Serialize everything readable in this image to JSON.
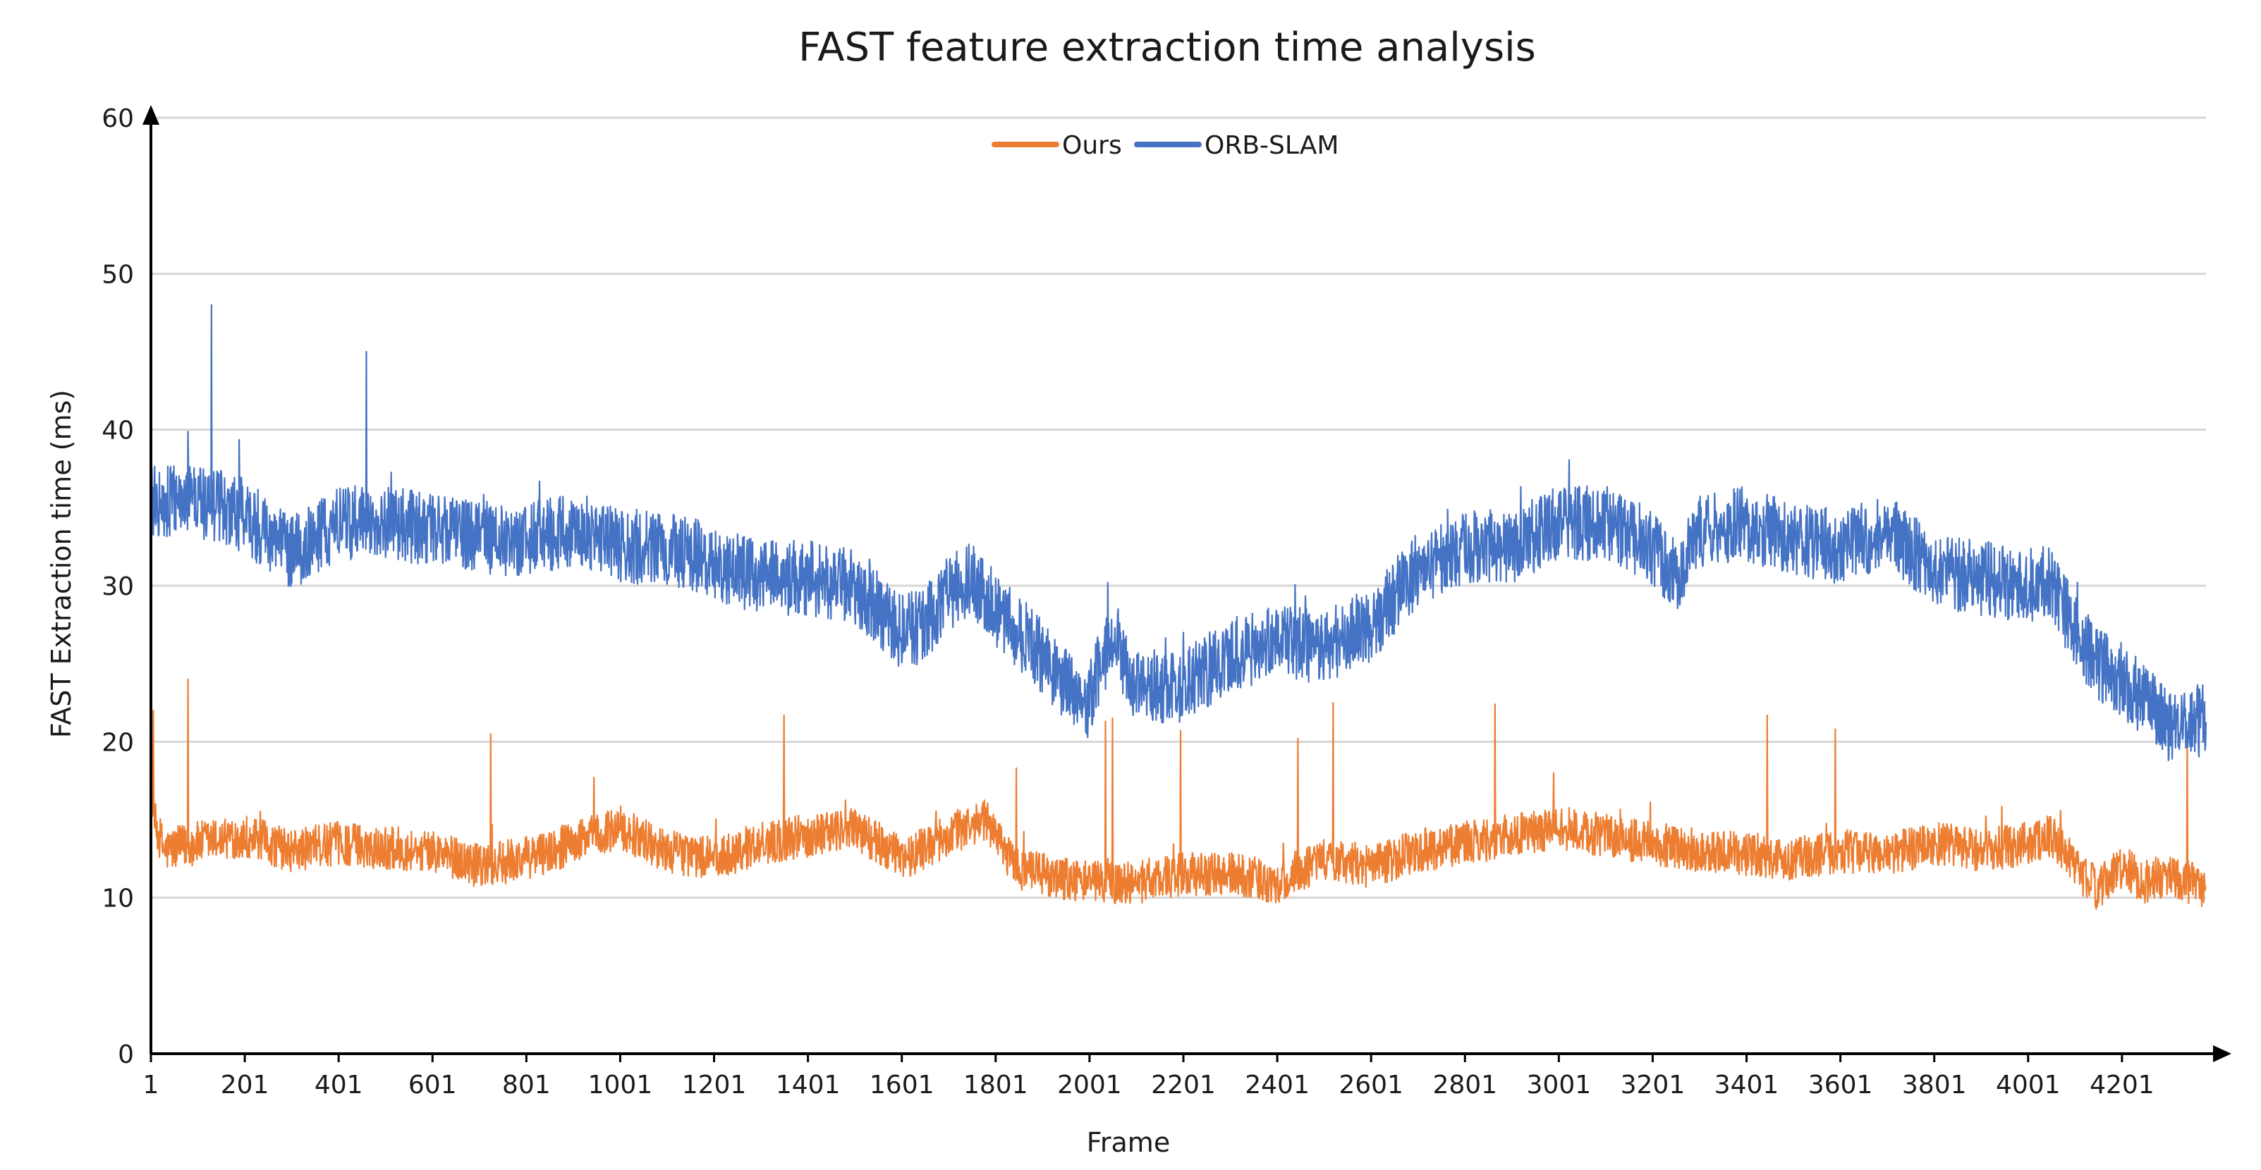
{
  "chart_data": {
    "type": "line",
    "title": "FAST feature extraction time analysis",
    "xlabel": "Frame",
    "ylabel": "FAST Extraction time (ms)",
    "xlim": [
      1,
      4380
    ],
    "ylim": [
      0,
      60
    ],
    "yticks": [
      0,
      10,
      20,
      30,
      40,
      50,
      60
    ],
    "xtick_labels": [
      "1",
      "201",
      "401",
      "601",
      "801",
      "1001",
      "1201",
      "1401",
      "1601",
      "1801",
      "2001",
      "2201",
      "2401",
      "2601",
      "2801",
      "3001",
      "3201",
      "3401",
      "3601",
      "3801",
      "4001",
      "4201"
    ],
    "grid": true,
    "legend_position": "top-center",
    "series": [
      {
        "name": "Ours",
        "color": "#ED7D31",
        "noise": 1.4,
        "x": [
          1,
          30,
          100,
          200,
          300,
          400,
          500,
          600,
          700,
          800,
          900,
          1000,
          1100,
          1200,
          1300,
          1400,
          1500,
          1600,
          1700,
          1780,
          1840,
          1900,
          2000,
          2100,
          2200,
          2300,
          2400,
          2500,
          2600,
          2700,
          2800,
          2900,
          3000,
          3100,
          3200,
          3300,
          3400,
          3500,
          3600,
          3700,
          3800,
          3900,
          4000,
          4050,
          4100,
          4150,
          4200,
          4250,
          4300,
          4380
        ],
        "y": [
          15.5,
          13.0,
          13.5,
          14.0,
          13.0,
          13.5,
          13.2,
          13.0,
          12.0,
          12.5,
          13.5,
          14.5,
          13.0,
          12.5,
          13.5,
          14.0,
          14.5,
          12.5,
          14.0,
          15.0,
          12.0,
          11.5,
          11.0,
          11.0,
          11.5,
          11.5,
          11.0,
          12.5,
          12.0,
          13.0,
          13.5,
          14.0,
          14.5,
          14.0,
          13.5,
          13.0,
          12.8,
          12.5,
          13.0,
          12.8,
          13.5,
          13.0,
          13.5,
          14.0,
          12.0,
          10.5,
          12.0,
          11.0,
          11.5,
          10.5
        ],
        "spikes": [
          [
            6,
            22.0
          ],
          [
            80,
            24.0
          ],
          [
            725,
            20.5
          ],
          [
            945,
            17.7
          ],
          [
            1350,
            21.7
          ],
          [
            1845,
            18.3
          ],
          [
            2035,
            21.3
          ],
          [
            2050,
            21.5
          ],
          [
            2195,
            20.7
          ],
          [
            2445,
            20.2
          ],
          [
            2520,
            22.5
          ],
          [
            2865,
            22.4
          ],
          [
            2990,
            18.0
          ],
          [
            3445,
            21.7
          ],
          [
            3590,
            20.8
          ],
          [
            4340,
            20.5
          ]
        ]
      },
      {
        "name": "ORB-SLAM",
        "color": "#4472C4",
        "noise": 2.4,
        "x": [
          1,
          100,
          200,
          300,
          400,
          500,
          600,
          700,
          800,
          900,
          1000,
          1100,
          1200,
          1300,
          1400,
          1500,
          1600,
          1650,
          1700,
          1750,
          1800,
          1900,
          1990,
          2050,
          2100,
          2200,
          2300,
          2400,
          2500,
          2600,
          2700,
          2800,
          2900,
          3000,
          3100,
          3200,
          3250,
          3300,
          3400,
          3500,
          3600,
          3700,
          3800,
          3900,
          4000,
          4050,
          4100,
          4150,
          4200,
          4250,
          4300,
          4380
        ],
        "y": [
          35.5,
          35.5,
          34.5,
          32.0,
          34.0,
          34.0,
          33.5,
          33.0,
          33.0,
          33.5,
          32.5,
          32.5,
          31.5,
          30.5,
          30.5,
          30.0,
          27.0,
          27.5,
          29.5,
          30.5,
          28.5,
          25.5,
          22.0,
          27.0,
          23.5,
          23.5,
          25.5,
          26.5,
          26.0,
          27.5,
          31.0,
          32.5,
          32.5,
          34.0,
          34.0,
          32.5,
          30.5,
          33.5,
          34.0,
          33.0,
          32.5,
          33.5,
          31.0,
          30.5,
          30.0,
          30.5,
          27.0,
          25.0,
          24.0,
          22.5,
          21.0,
          21.5
        ],
        "spikes": [
          [
            130,
            48.0
          ],
          [
            460,
            45.0
          ],
          [
            2040,
            30.2
          ]
        ]
      }
    ]
  }
}
